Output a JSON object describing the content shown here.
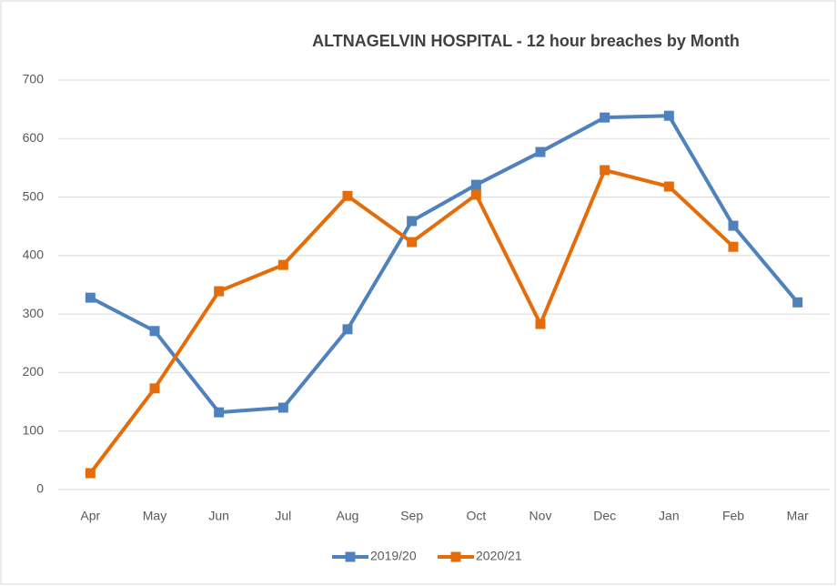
{
  "chart_data": {
    "type": "line",
    "title": "ALTNAGELVIN HOSPITAL - 12 hour breaches by Month",
    "categories": [
      "Apr",
      "May",
      "Jun",
      "Jul",
      "Aug",
      "Sep",
      "Oct",
      "Nov",
      "Dec",
      "Jan",
      "Feb",
      "Mar"
    ],
    "series": [
      {
        "name": "2019/20",
        "color": "#4f81bd",
        "values": [
          328,
          271,
          132,
          140,
          274,
          459,
          521,
          577,
          636,
          639,
          451,
          320
        ]
      },
      {
        "name": "2020/21",
        "color": "#e46c0a",
        "values": [
          28,
          173,
          339,
          384,
          502,
          423,
          504,
          283,
          546,
          518,
          415,
          null
        ]
      }
    ],
    "ylim": [
      0,
      700
    ],
    "yticks": [
      0,
      100,
      200,
      300,
      400,
      500,
      600,
      700
    ],
    "grid": true,
    "legend": "bottom"
  }
}
